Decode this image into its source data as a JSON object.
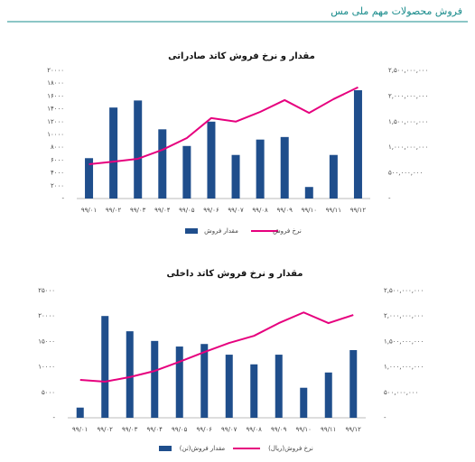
{
  "header": {
    "title": "فروش محصولات مهم ملی مس"
  },
  "chart_data": [
    {
      "type": "bar",
      "title": "مقدار و نرخ فروش کاتد صادراتی",
      "categories": [
        "۹۹/۰۱",
        "۹۹/۰۲",
        "۹۹/۰۳",
        "۹۹/۰۴",
        "۹۹/۰۵",
        "۹۹/۰۶",
        "۹۹/۰۷",
        "۹۹/۰۸",
        "۹۹/۰۹",
        "۹۹/۱۰",
        "۹۹/۱۱",
        "۹۹/۱۲"
      ],
      "series": [
        {
          "name": "مقدار فروش",
          "type": "bar",
          "color": "#1f4e8c",
          "values": [
            6300,
            14200,
            15300,
            10800,
            8200,
            12000,
            6800,
            9200,
            9600,
            1800,
            6800,
            16900
          ]
        },
        {
          "name": "نرخ فروش",
          "type": "line",
          "axis": "y2",
          "color": "#e6007e",
          "values": [
            670000000,
            720000000,
            775000000,
            950000000,
            1180000000,
            1570000000,
            1500000000,
            1690000000,
            1920000000,
            1670000000,
            1940000000,
            2170000000
          ]
        }
      ],
      "ylim": [
        0,
        20000
      ],
      "yticks": [
        {
          "value": 0,
          "label": "-"
        },
        {
          "value": 2000,
          "label": "۲۰۰۰"
        },
        {
          "value": 4000,
          "label": "۴۰۰۰"
        },
        {
          "value": 6000,
          "label": "۶۰۰۰"
        },
        {
          "value": 8000,
          "label": "۸۰۰۰"
        },
        {
          "value": 10000,
          "label": "۱۰۰۰۰"
        },
        {
          "value": 12000,
          "label": "۱۲۰۰۰"
        },
        {
          "value": 14000,
          "label": "۱۴۰۰۰"
        },
        {
          "value": 16000,
          "label": "۱۶۰۰۰"
        },
        {
          "value": 18000,
          "label": "۱۸۰۰۰"
        },
        {
          "value": 20000,
          "label": "۲۰۰۰۰"
        }
      ],
      "y2lim": [
        0,
        2500000000
      ],
      "y2ticks": [
        {
          "value": 0,
          "label": "-"
        },
        {
          "value": 500000000,
          "label": "۵۰۰,۰۰۰,۰۰۰"
        },
        {
          "value": 1000000000,
          "label": "۱,۰۰۰,۰۰۰,۰۰۰"
        },
        {
          "value": 1500000000,
          "label": "۱,۵۰۰,۰۰۰,۰۰۰"
        },
        {
          "value": 2000000000,
          "label": "۲,۰۰۰,۰۰۰,۰۰۰"
        },
        {
          "value": 2500000000,
          "label": "۲,۵۰۰,۰۰۰,۰۰۰"
        }
      ],
      "grid": false
    },
    {
      "type": "bar",
      "title": "مقدار و نرخ فروش کاتد داخلی",
      "categories": [
        "۹۹/۰۱",
        "۹۹/۰۲",
        "۹۹/۰۳",
        "۹۹/۰۴",
        "۹۹/۰۵",
        "۹۹/۰۶",
        "۹۹/۰۷",
        "۹۹/۰۸",
        "۹۹/۰۹",
        "۹۹/۱۰",
        "۹۹/۱۱",
        "۹۹/۱۲"
      ],
      "series": [
        {
          "name": "مقدار فروش(تن)",
          "type": "bar",
          "color": "#1f4e8c",
          "values": [
            2000,
            20000,
            17000,
            15100,
            14000,
            14500,
            12400,
            10500,
            12400,
            5900,
            8900,
            13300
          ]
        },
        {
          "name": "نرخ فروش(ریال)",
          "type": "line",
          "axis": "y2",
          "color": "#e6007e",
          "values": [
            745000000,
            710000000,
            800000000,
            920000000,
            1100000000,
            1290000000,
            1470000000,
            1610000000,
            1860000000,
            2070000000,
            1860000000,
            2020000000
          ]
        }
      ],
      "ylim": [
        0,
        25000
      ],
      "yticks": [
        {
          "value": 0,
          "label": "-"
        },
        {
          "value": 5000,
          "label": "۵۰۰۰"
        },
        {
          "value": 10000,
          "label": "۱۰۰۰۰"
        },
        {
          "value": 15000,
          "label": "۱۵۰۰۰"
        },
        {
          "value": 20000,
          "label": "۲۰۰۰۰"
        },
        {
          "value": 25000,
          "label": "۲۵۰۰۰"
        }
      ],
      "y2lim": [
        0,
        2500000000
      ],
      "y2ticks": [
        {
          "value": 0,
          "label": "-"
        },
        {
          "value": 500000000,
          "label": "۵۰۰,۰۰۰,۰۰۰"
        },
        {
          "value": 1000000000,
          "label": "۱,۰۰۰,۰۰۰,۰۰۰"
        },
        {
          "value": 1500000000,
          "label": "۱,۵۰۰,۰۰۰,۰۰۰"
        },
        {
          "value": 2000000000,
          "label": "۲,۰۰۰,۰۰۰,۰۰۰"
        },
        {
          "value": 2500000000,
          "label": "۲,۵۰۰,۰۰۰,۰۰۰"
        }
      ],
      "grid": false
    }
  ]
}
